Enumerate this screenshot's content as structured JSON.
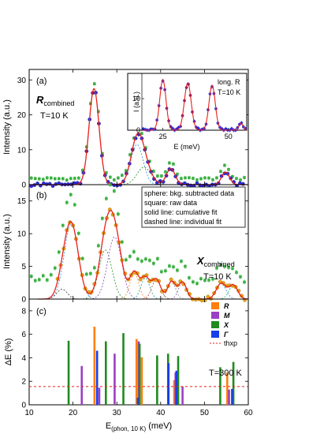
{
  "figure": {
    "shared_xlabel": "E(phon, 10 K) (meV)",
    "shared_xlabel_main": "E",
    "shared_xlabel_sub": "(phon, 10 K)",
    "shared_xlabel_unit": " (meV)"
  },
  "chart_data": [
    {
      "panel": "(a)",
      "type": "scatter",
      "title": "",
      "label_bold": "R",
      "label_sub": "combined",
      "label_temp": "T=10 K",
      "ylabel": "Intensity (a.u.)",
      "xlim": [
        10,
        60
      ],
      "ylim": [
        0,
        33
      ],
      "yticks": [
        0,
        10,
        20,
        30
      ],
      "peaks": [
        {
          "center": 24.8,
          "amp": 27.5,
          "sigma": 1.15
        },
        {
          "center": 34.6,
          "amp": 11.5,
          "sigma": 1.4
        },
        {
          "center": 36.2,
          "amp": 5.0,
          "sigma": 1.6
        },
        {
          "center": 42.3,
          "amp": 4.6,
          "sigma": 1.0
        },
        {
          "center": 54.8,
          "amp": 3.6,
          "sigma": 0.9
        }
      ],
      "background": 0.8,
      "colors": {
        "subtracted": "#2b2bd8",
        "raw": "#3cb043",
        "fit": "#e8201a"
      },
      "inset": {
        "label_top": "long. R",
        "label_temp": "T=10 K",
        "xlabel": "E (meV)",
        "ylabel": "I (a.u.)",
        "xlim": [
          17,
          57
        ],
        "ylim": [
          0,
          18
        ],
        "xticks": [
          25,
          50
        ],
        "yticks": [
          0,
          10
        ],
        "peaks": [
          {
            "center": 25,
            "amp": 16.0,
            "sigma": 1.2
          },
          {
            "center": 34.5,
            "amp": 15.0,
            "sigma": 1.3
          },
          {
            "center": 43.8,
            "amp": 14.2,
            "sigma": 1.2
          },
          {
            "center": 54.8,
            "amp": 2.2,
            "sigma": 0.8
          }
        ]
      }
    },
    {
      "panel": "(b)",
      "type": "scatter",
      "title": "",
      "label_bold": "X",
      "label_sub": "combined",
      "label_temp": "T=10 K",
      "ylabel": "Intensity (a.u.)",
      "xlim": [
        10,
        60
      ],
      "ylim": [
        0,
        17.5
      ],
      "yticks": [
        0,
        5,
        10,
        15
      ],
      "legend_notes": [
        "sphere: bkg. subtracted data",
        "square: raw data",
        "solid line: cumulative fit",
        "dashed line: individual fit"
      ],
      "peaks": [
        {
          "center": 17.5,
          "amp": 1.5,
          "sigma": 1.2
        },
        {
          "center": 19.6,
          "amp": 11.5,
          "sigma": 1.6
        },
        {
          "center": 27.4,
          "amp": 7.5,
          "sigma": 1.5
        },
        {
          "center": 29.5,
          "amp": 9.5,
          "sigma": 1.6
        },
        {
          "center": 34.0,
          "amp": 4.0,
          "sigma": 1.0
        },
        {
          "center": 36.5,
          "amp": 3.2,
          "sigma": 1.0
        },
        {
          "center": 39.0,
          "amp": 3.0,
          "sigma": 1.0
        },
        {
          "center": 42.5,
          "amp": 2.7,
          "sigma": 0.9
        },
        {
          "center": 45.0,
          "amp": 2.6,
          "sigma": 0.9
        },
        {
          "center": 53.8,
          "amp": 2.4,
          "sigma": 1.1
        },
        {
          "center": 56.6,
          "amp": 2.1,
          "sigma": 1.0
        }
      ],
      "raw_offset": 2.4,
      "colors": {
        "subtracted": "#e8a21a",
        "raw": "#3cb043",
        "fit": "#e8201a"
      }
    },
    {
      "panel": "(c)",
      "type": "bar",
      "title": "",
      "ylabel": "ΔE (%)",
      "xlim": [
        10,
        60
      ],
      "ylim": [
        0,
        9
      ],
      "yticks": [
        0,
        2,
        4,
        6,
        8
      ],
      "xticks": [
        10,
        20,
        30,
        40,
        50,
        60
      ],
      "reference_line": {
        "y": 1.55,
        "label": "thxp",
        "color": "#e8201a"
      },
      "label_temp": "T=300 K",
      "series": [
        {
          "name": "R",
          "color": "#ff7f0e",
          "points": [
            [
              24.9,
              6.65
            ],
            [
              34.5,
              5.6
            ],
            [
              35.7,
              4.05
            ],
            [
              43.1,
              2.1
            ],
            [
              55.2,
              2.75
            ]
          ]
        },
        {
          "name": "M",
          "color": "#9b3fc6",
          "points": [
            [
              22.0,
              3.3
            ],
            [
              26.0,
              1.45
            ],
            [
              29.5,
              4.35
            ],
            [
              35.0,
              5.4
            ],
            [
              43.4,
              2.75
            ],
            [
              45.0,
              1.55
            ],
            [
              55.6,
              1.3
            ]
          ]
        },
        {
          "name": "X",
          "color": "#1f8a1f",
          "points": [
            [
              19.0,
              5.45
            ],
            [
              27.5,
              5.4
            ],
            [
              31.5,
              6.1
            ],
            [
              35.2,
              5.2
            ],
            [
              39.2,
              4.2
            ],
            [
              41.7,
              4.35
            ],
            [
              44.0,
              4.15
            ],
            [
              53.6,
              3.2
            ],
            [
              56.6,
              3.65
            ]
          ]
        },
        {
          "name": "Γ",
          "color": "#1a3ee8",
          "points": [
            [
              25.5,
              4.6
            ],
            [
              34.8,
              0.6
            ],
            [
              41.8,
              3.55
            ],
            [
              43.6,
              2.9
            ],
            [
              56.3,
              1.35
            ]
          ]
        }
      ]
    }
  ]
}
